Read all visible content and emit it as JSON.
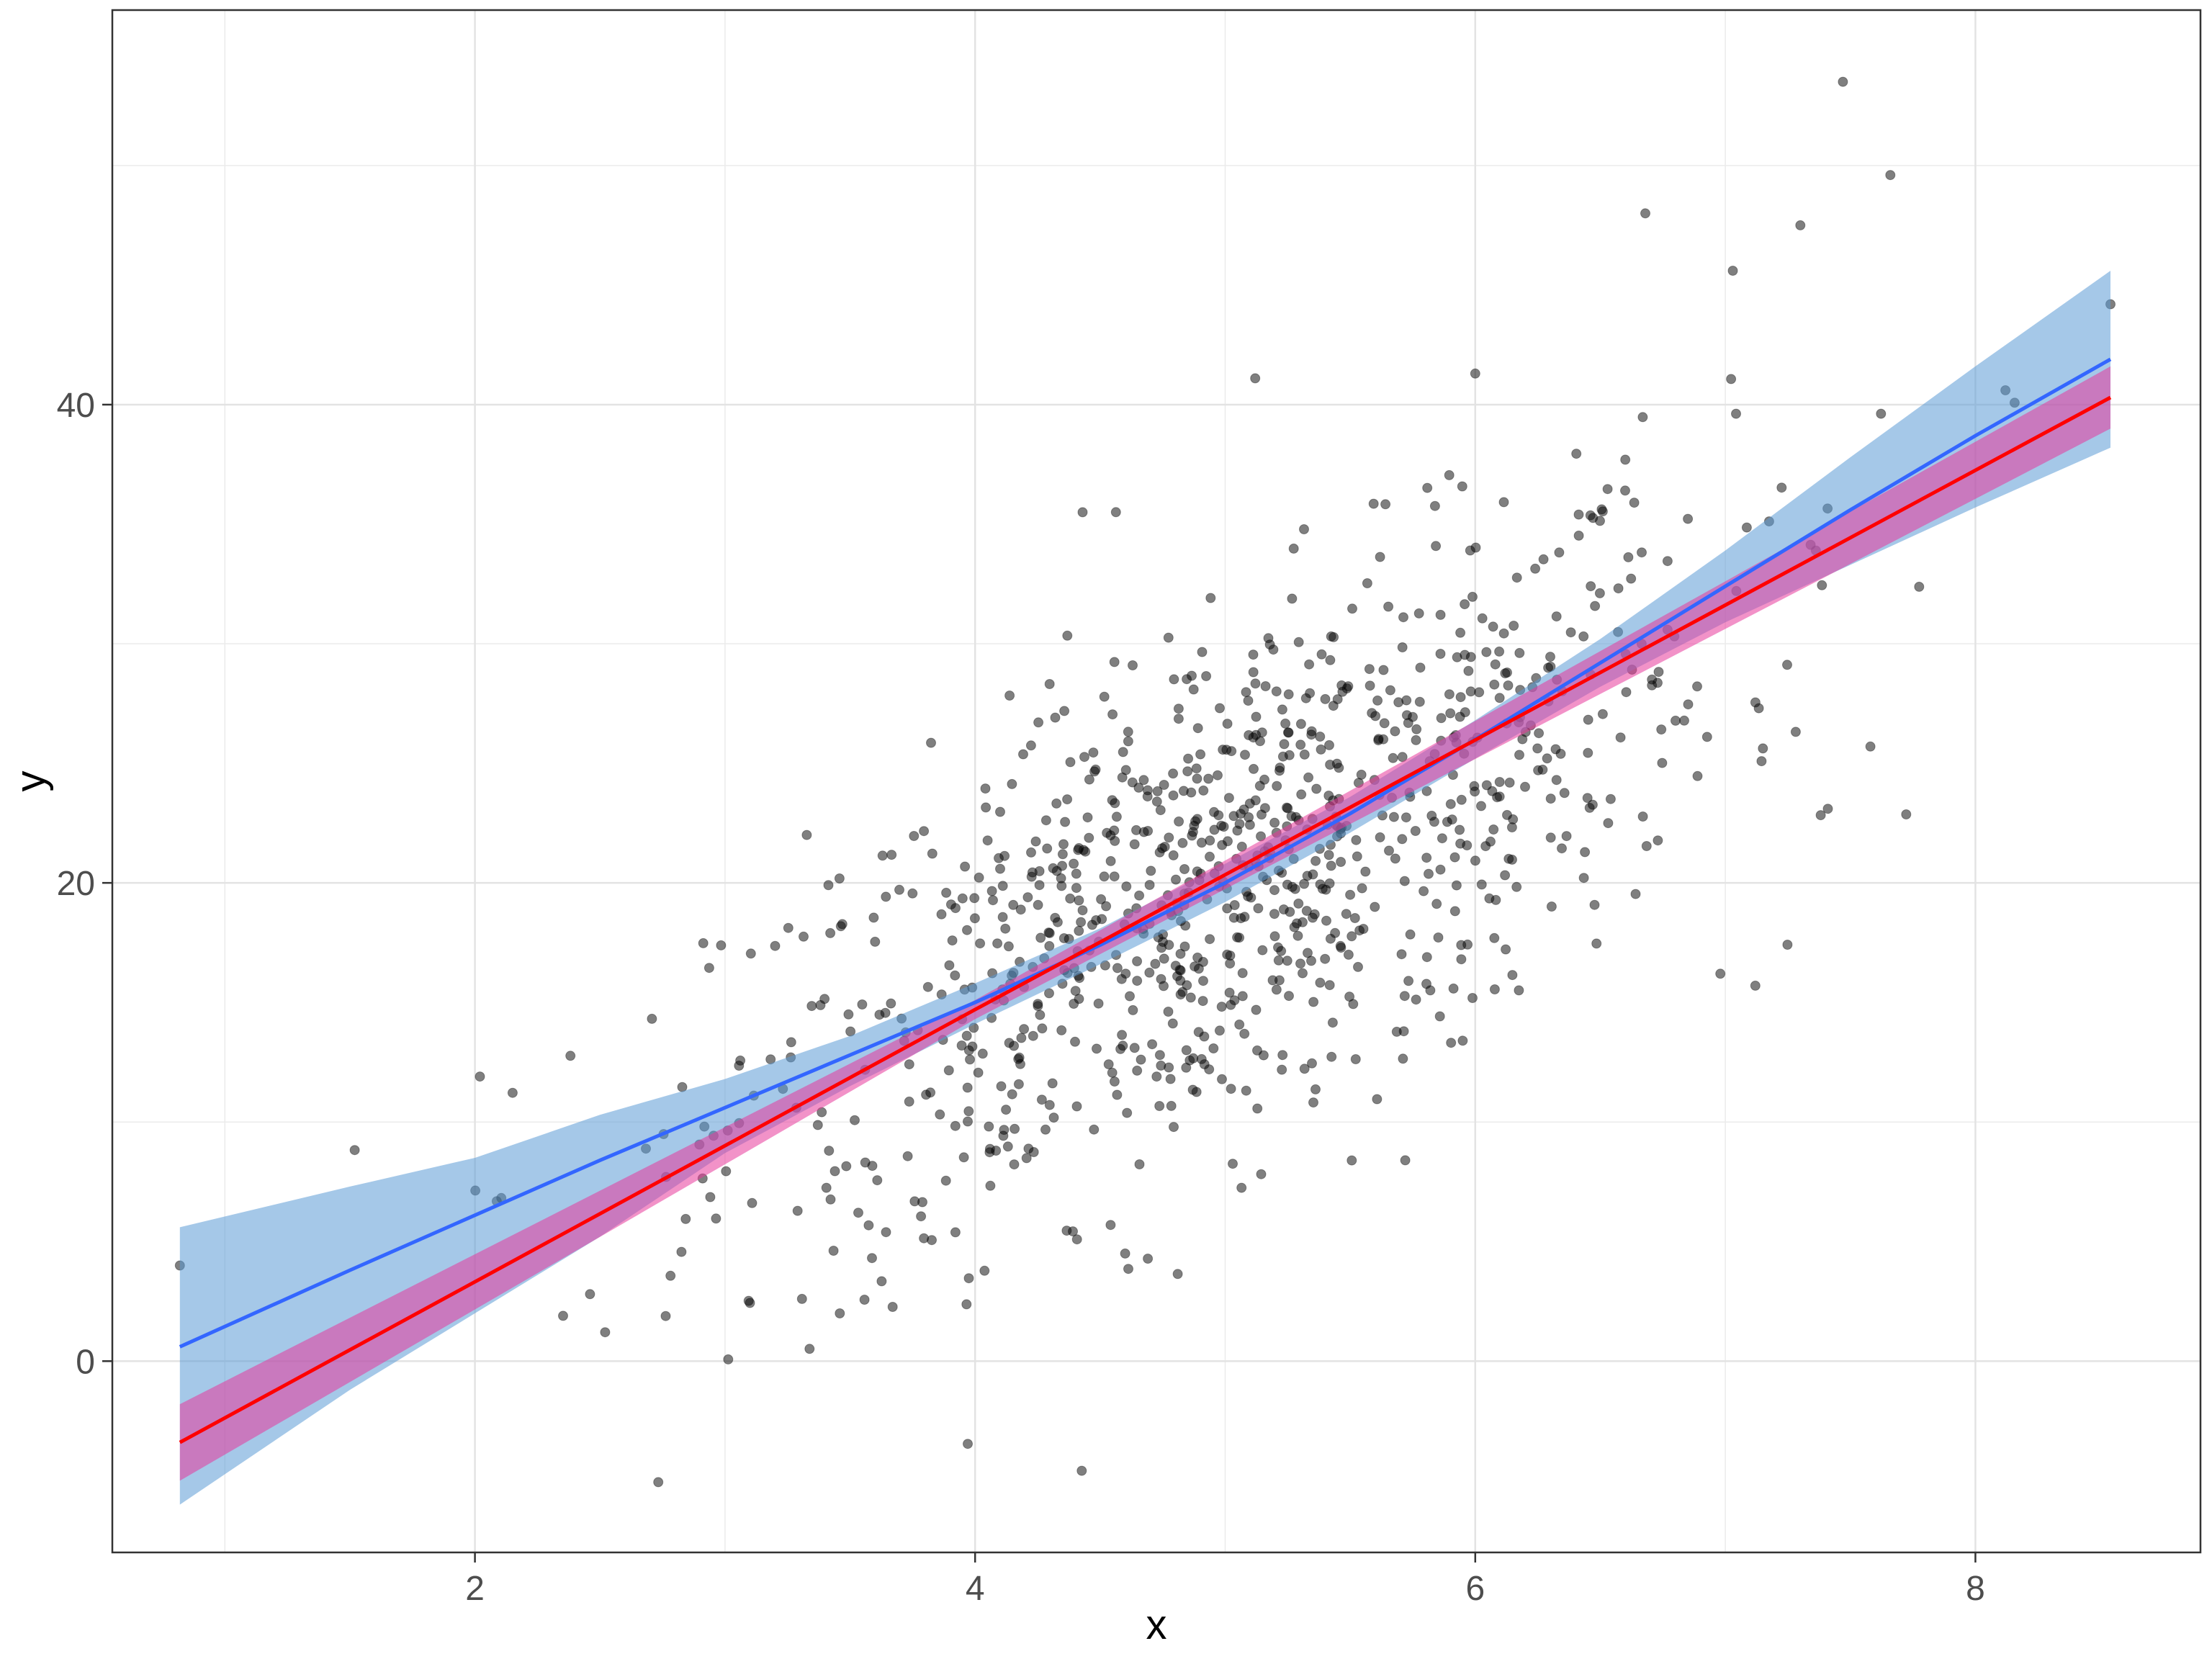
{
  "chart_data": {
    "type": "scatter",
    "title": "",
    "xlabel": "x",
    "ylabel": "y",
    "xlim": [
      0.55,
      8.9
    ],
    "ylim": [
      -8,
      56.5
    ],
    "x_ticks": [
      2,
      4,
      6,
      8
    ],
    "y_ticks": [
      0,
      20,
      40
    ],
    "x_tick_labels": [
      "2",
      "4",
      "6",
      "8"
    ],
    "y_tick_labels": [
      "0",
      "20",
      "40"
    ],
    "grid": true,
    "legend": "none",
    "points": {
      "color": "#000000",
      "opacity": 0.5,
      "n_approx": 1000,
      "visible_extremes": [
        [
          0.82,
          4.0
        ],
        [
          2.02,
          11.9
        ],
        [
          7.47,
          53.5
        ],
        [
          7.66,
          49.6
        ],
        [
          6.68,
          48.0
        ],
        [
          8.54,
          44.2
        ],
        [
          5.12,
          41.1
        ],
        [
          6.0,
          41.3
        ],
        [
          7.3,
          47.5
        ],
        [
          7.03,
          45.6
        ],
        [
          4.43,
          35.5
        ],
        [
          5.95,
          13.4
        ],
        [
          5.72,
          8.4
        ],
        [
          4.6,
          4.5
        ],
        [
          2.46,
          2.8
        ],
        [
          7.12,
          15.7
        ],
        [
          6.98,
          16.2
        ],
        [
          8.12,
          40.6
        ],
        [
          7.58,
          25.7
        ],
        [
          7.41,
          23.1
        ]
      ]
    },
    "series": [
      {
        "kind": "smooth",
        "color": "#3366ff",
        "band_color": "#5b9bd5",
        "band_opacity": 0.55,
        "x": [
          0.82,
          1.5,
          2.0,
          2.5,
          3.0,
          3.5,
          4.0,
          4.5,
          5.0,
          5.5,
          6.0,
          6.5,
          7.0,
          7.5,
          8.0,
          8.54
        ],
        "y": [
          0.6,
          3.8,
          6.1,
          8.4,
          10.6,
          12.8,
          15.0,
          17.4,
          20.0,
          22.9,
          26.0,
          29.2,
          32.4,
          35.6,
          38.7,
          41.9
        ],
        "ymin": [
          -6.0,
          -1.2,
          2.0,
          5.2,
          8.7,
          11.5,
          14.1,
          16.6,
          19.2,
          22.1,
          25.2,
          28.2,
          30.9,
          33.3,
          35.7,
          38.2
        ],
        "ymax": [
          5.6,
          7.3,
          8.5,
          10.3,
          11.8,
          13.6,
          15.8,
          18.1,
          20.8,
          23.6,
          26.8,
          30.2,
          33.9,
          37.8,
          41.6,
          45.6
        ]
      },
      {
        "kind": "linear",
        "color": "#ff0000",
        "band_color": "#e8389a",
        "band_opacity": 0.55,
        "x": [
          0.82,
          4.0,
          8.54
        ],
        "y": [
          -3.4,
          14.7,
          40.3
        ],
        "ymin": [
          -5.0,
          14.3,
          39.0
        ],
        "ymax": [
          -1.8,
          15.1,
          41.6
        ]
      }
    ]
  }
}
